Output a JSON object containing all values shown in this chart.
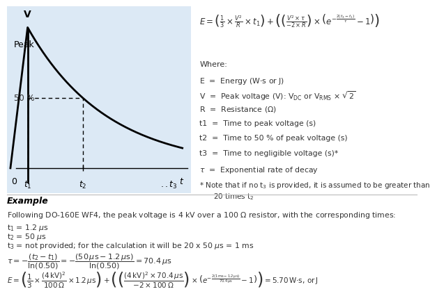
{
  "bg_color": "#ffffff",
  "plot_bg_color": "#dce9f5",
  "fig_width": 6.0,
  "fig_height": 4.08,
  "formula_top": "E = \\left(\\frac{1}{3} \\times \\frac{V^2}{R} \\times t_1\\right) + \\left(\\left(\\frac{V^2 \\times \\tau}{-2 \\times R}\\right) \\times \\left(e^{-\\frac{2(t_3-t_1)}{\\tau}} - 1\\right)\\right)",
  "where_lines": [
    "Where:",
    "E  =  Energy (W·s or J)",
    "V  =  Peak voltage (V): V\\textsubDC or V\\textsubRMS × √2",
    "R  =  Resistance (Ω)",
    "t1  =  Time to peak voltage (s)",
    "t2  =  Time to 50 % of peak voltage (s)",
    "t3  =  Time to negligible voltage (s)*",
    "τ  =  Exponential rate of decay"
  ],
  "note_line": "* Note that if no t\\textsubscript{3} is provided, it is assumed to be greater than",
  "note_line2": "20 times t\\textsubscript{2}",
  "example_title": "Example",
  "example_lines": [
    "Following DO-160E WF4, the peak voltage is 4 kV over a 100 Ω resistor, with the corresponding times:",
    "t\\textsubscript{1} = 1.2 μs",
    "t\\textsubscript{2} = 50 μs",
    "t\\textsubscript{3} = not provided; for the calculation it will be 20 x 50 μs = 1 ms"
  ]
}
